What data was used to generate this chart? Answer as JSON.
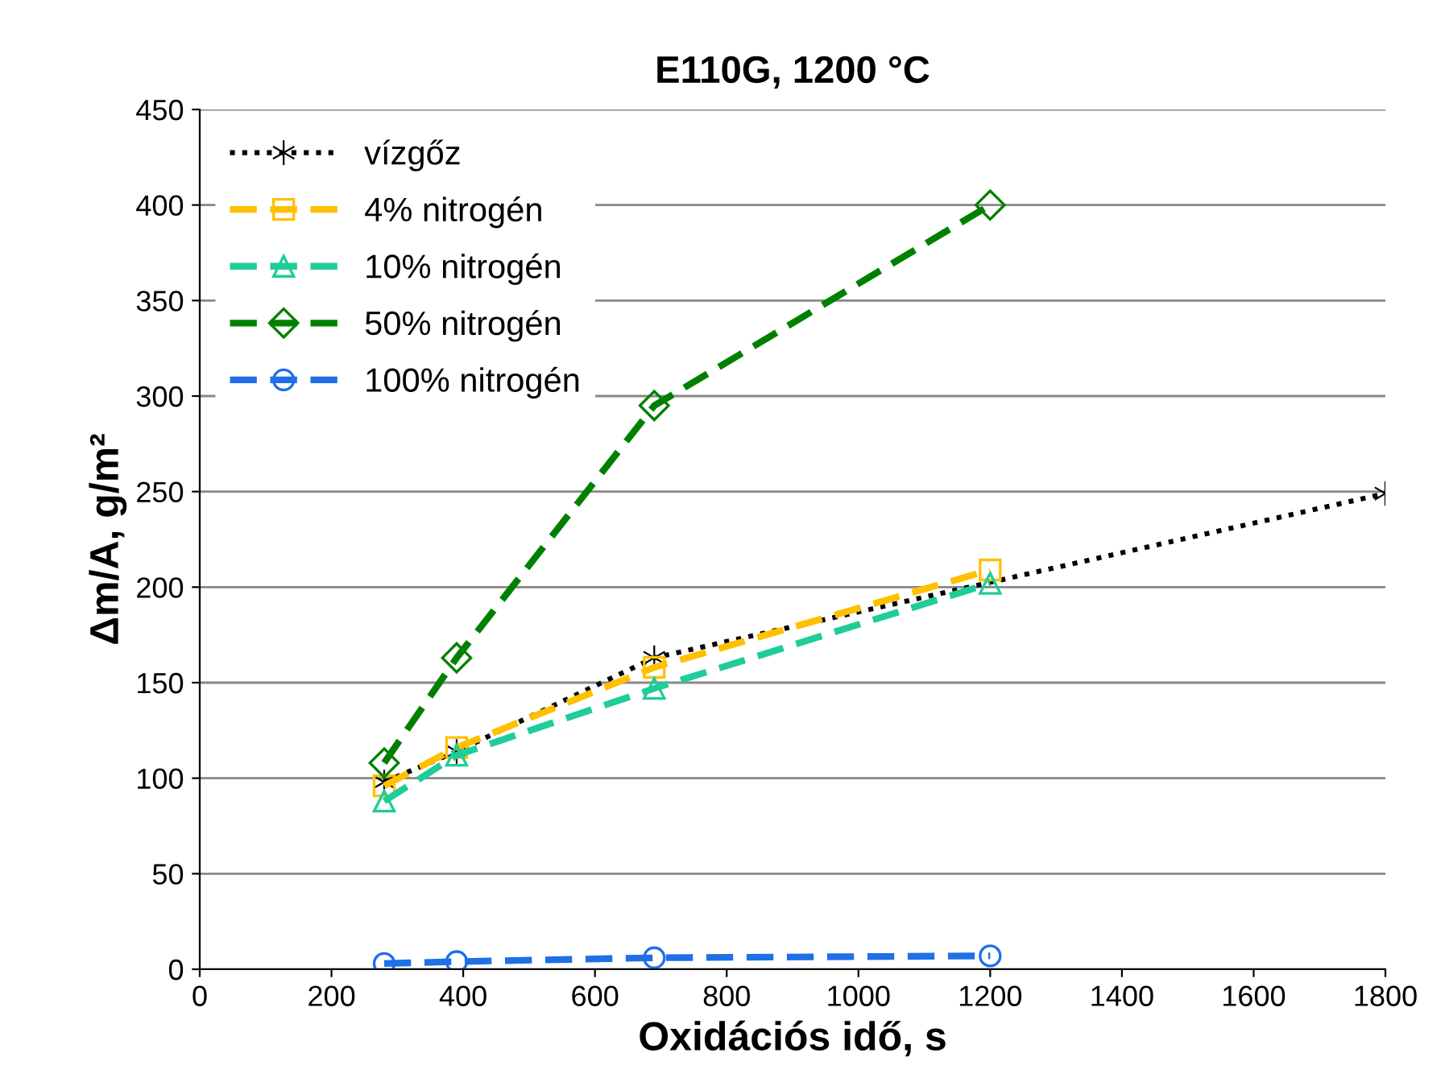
{
  "chart_data": {
    "type": "line",
    "title": "E110G, 1200 °C",
    "xlabel": "Oxidációs idő, s",
    "ylabel": "Δm/A, g/m²",
    "xlim": [
      0,
      1800
    ],
    "xticks": [
      0,
      200,
      400,
      600,
      800,
      1000,
      1200,
      1400,
      1600,
      1800
    ],
    "ylim": [
      0,
      450
    ],
    "yticks": [
      0,
      50,
      100,
      150,
      200,
      250,
      300,
      350,
      400,
      450
    ],
    "grid": "y",
    "legend": "top left",
    "series": [
      {
        "name": "vízgőz",
        "color": "#000000",
        "marker": "cross",
        "line_style": "dotted",
        "x": [
          280,
          390,
          690,
          1800
        ],
        "values": [
          98,
          114,
          163,
          249
        ]
      },
      {
        "name": "4% nitrogén",
        "color": "#ffc000",
        "marker": "square",
        "line_style": "dashed",
        "x": [
          280,
          390,
          690,
          1200
        ],
        "values": [
          96,
          116,
          158,
          209
        ]
      },
      {
        "name": "10% nitrogén",
        "color": "#1fcc9a",
        "marker": "triangle",
        "line_style": "dashed",
        "x": [
          280,
          390,
          690,
          1200
        ],
        "values": [
          88,
          112,
          147,
          202
        ]
      },
      {
        "name": "50% nitrogén",
        "color": "#008000",
        "marker": "diamond",
        "line_style": "dashed",
        "x": [
          280,
          390,
          690,
          1200
        ],
        "values": [
          108,
          163,
          295,
          400
        ]
      },
      {
        "name": "100% nitrogén",
        "color": "#1f6fe8",
        "marker": "circle",
        "line_style": "dashed",
        "x": [
          280,
          390,
          690,
          1200
        ],
        "values": [
          3,
          4,
          6,
          7
        ]
      }
    ]
  }
}
